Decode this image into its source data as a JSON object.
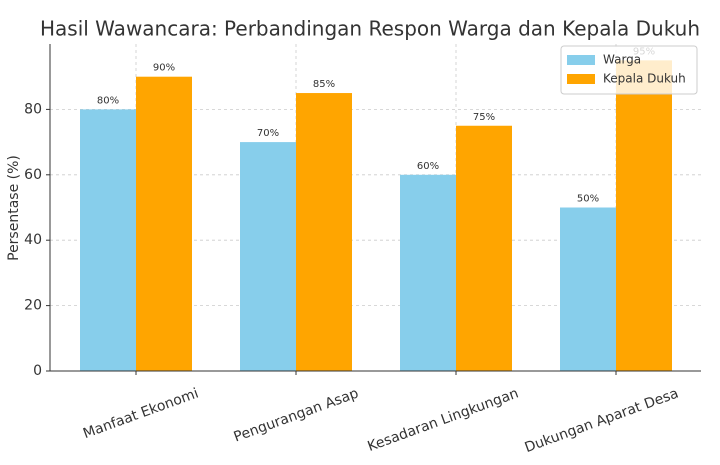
{
  "chart_data": {
    "type": "bar",
    "title": "Hasil Wawancara: Perbandingan Respon Warga dan Kepala Dukuh",
    "y_label": "Persentase (%)",
    "categories": [
      "Manfaat Ekonomi",
      "Pengurangan Asap",
      "Kesadaran Lingkungan",
      "Dukungan Aparat Desa"
    ],
    "series": [
      {
        "name": "Warga",
        "color": "#87ceeb",
        "values": [
          80,
          70,
          60,
          50
        ],
        "value_labels": [
          "80%",
          "70%",
          "60%",
          "50%"
        ]
      },
      {
        "name": "Kepala Dukuh",
        "color": "#ffa500",
        "values": [
          90,
          85,
          75,
          95
        ],
        "value_labels": [
          "90%",
          "85%",
          "75%",
          "95%"
        ]
      }
    ],
    "ylim": [
      0,
      100
    ],
    "yticks": [
      0,
      20,
      40,
      60,
      80
    ],
    "grid": true,
    "legend": "upper-right"
  }
}
